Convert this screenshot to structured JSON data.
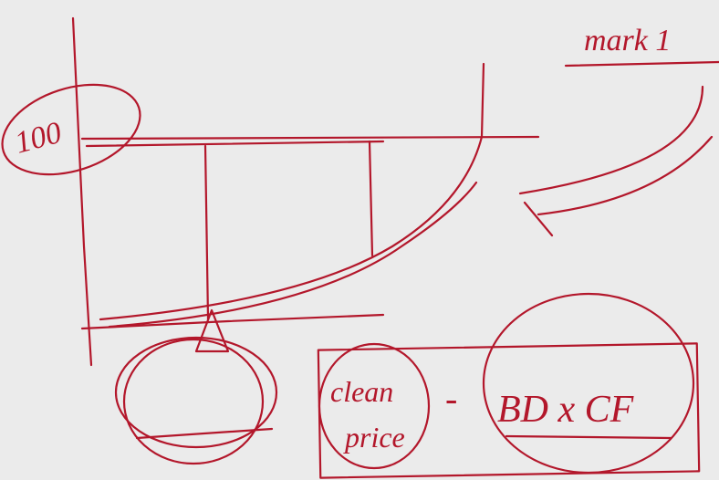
{
  "labels": {
    "par": "100",
    "top_note": "mark 1",
    "clean": "clean",
    "price": "price",
    "minus": "-",
    "product": "BD x CF"
  }
}
